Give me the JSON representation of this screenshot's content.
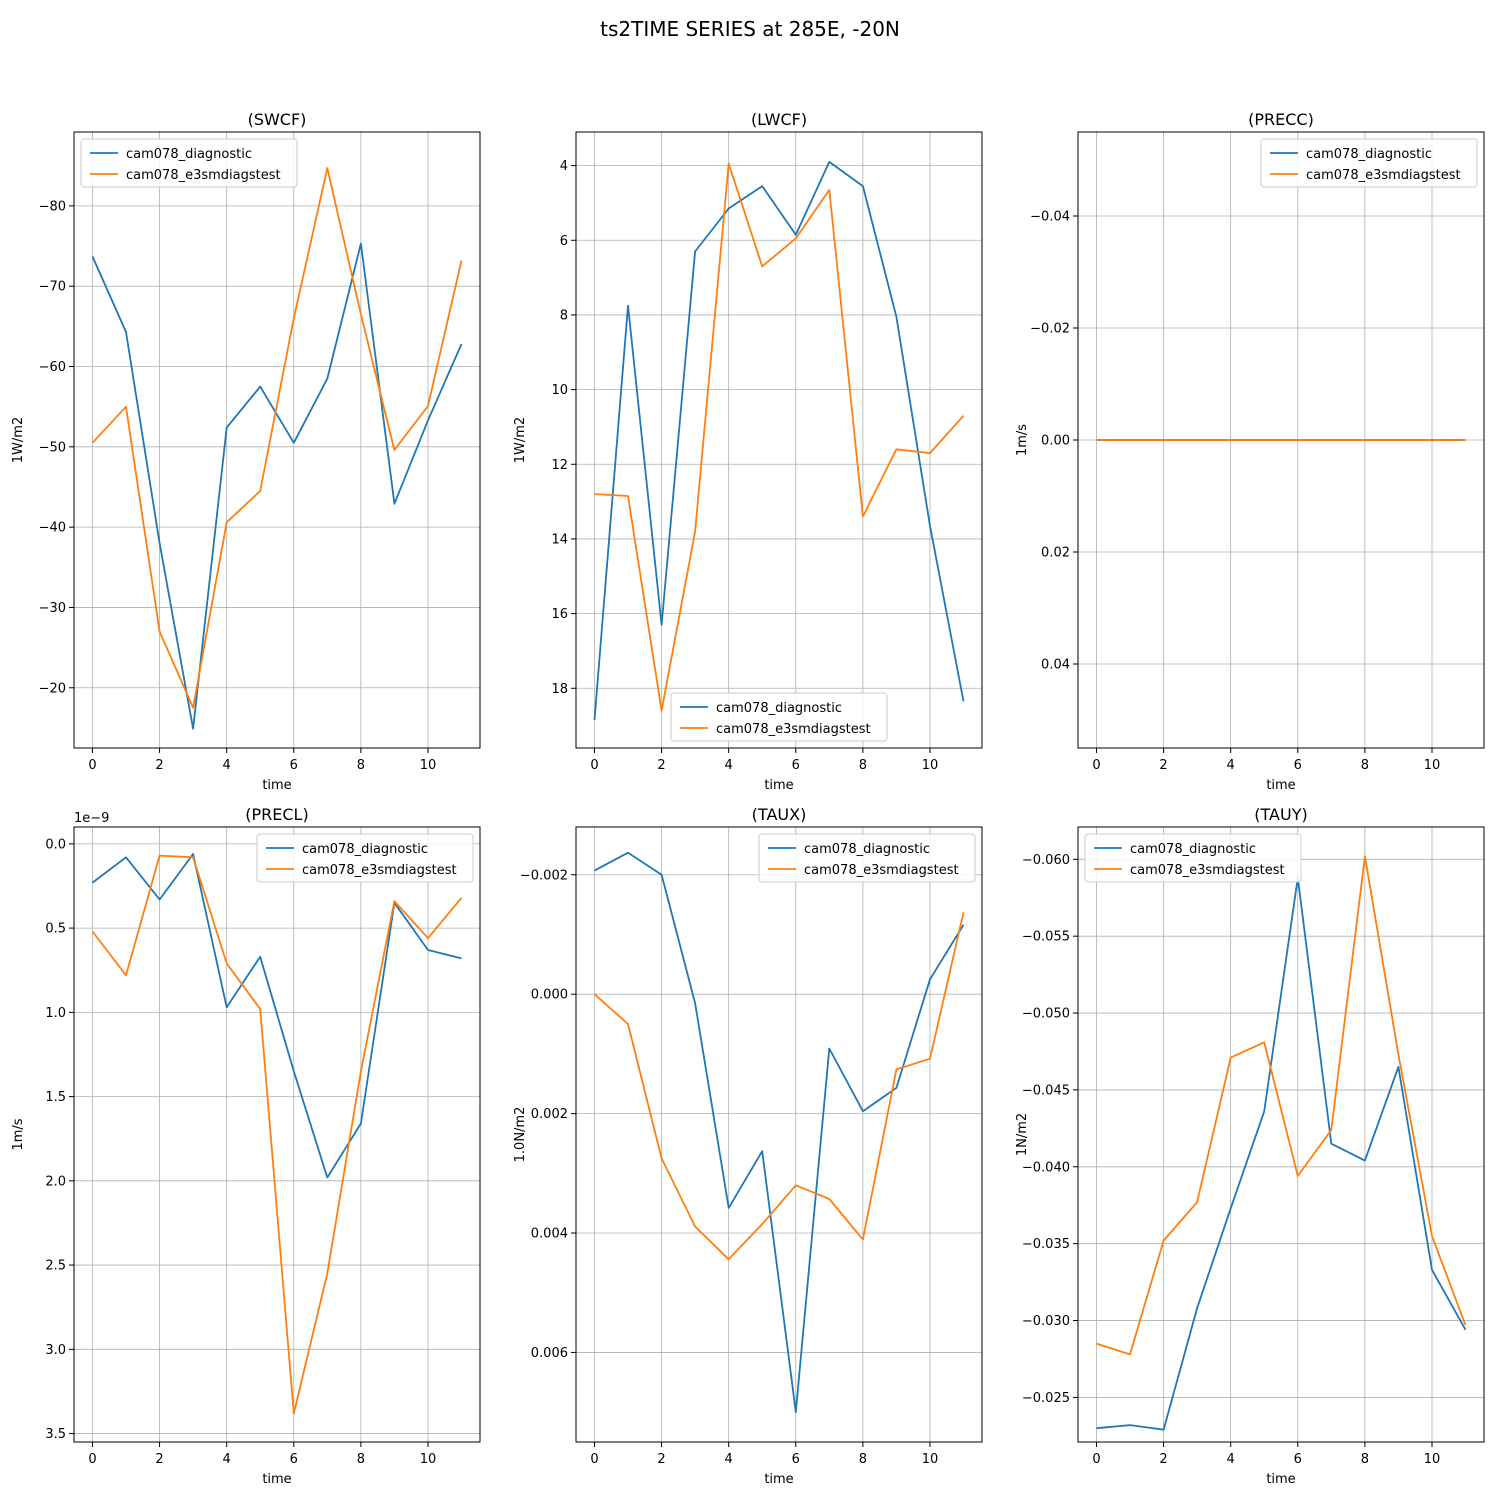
{
  "suptitle": "ts2TIME SERIES at 285E, -20N",
  "colors": {
    "cam078_diagnostic": "#1f77b4",
    "cam078_e3smdiagstest": "#ff7f0e"
  },
  "chart_data": [
    {
      "type": "line",
      "title": "(SWCF)",
      "xlabel": "time",
      "ylabel": "1W/m2",
      "y_inverted": true,
      "grid": true,
      "legend": "upper left",
      "xlim": [
        -0.55,
        11.55
      ],
      "ylim": [
        -12.5,
        -89.2
      ],
      "xticks": [
        0,
        2,
        4,
        6,
        8,
        10
      ],
      "xtick_labels": [
        "0",
        "2",
        "4",
        "6",
        "8",
        "10"
      ],
      "yticks": [
        -80,
        -70,
        -60,
        -50,
        -40,
        -30,
        -20
      ],
      "ytick_labels": [
        "−80",
        "−70",
        "−60",
        "−50",
        "−40",
        "−30",
        "−20"
      ],
      "x": [
        0,
        1,
        2,
        3,
        4,
        5,
        6,
        7,
        8,
        9,
        10,
        11
      ],
      "series": [
        {
          "name": "cam078_diagnostic",
          "values": [
            -73.7,
            -64.3,
            -38.0,
            -14.9,
            -52.4,
            -57.5,
            -50.5,
            -58.5,
            -75.3,
            -42.9,
            -53.3,
            -62.8
          ]
        },
        {
          "name": "cam078_e3smdiagstest",
          "values": [
            -50.5,
            -55.0,
            -27.0,
            -17.5,
            -40.6,
            -44.5,
            -66.0,
            -84.7,
            -66.5,
            -49.6,
            -55.1,
            -73.2
          ]
        }
      ]
    },
    {
      "type": "line",
      "title": "(LWCF)",
      "xlabel": "time",
      "ylabel": "1W/m2",
      "y_inverted": true,
      "grid": true,
      "legend": "lower center",
      "xlim": [
        -0.55,
        11.55
      ],
      "ylim": [
        19.6,
        3.1
      ],
      "xticks": [
        0,
        2,
        4,
        6,
        8,
        10
      ],
      "xtick_labels": [
        "0",
        "2",
        "4",
        "6",
        "8",
        "10"
      ],
      "yticks": [
        4,
        6,
        8,
        10,
        12,
        14,
        16,
        18
      ],
      "ytick_labels": [
        "4",
        "6",
        "8",
        "10",
        "12",
        "14",
        "16",
        "18"
      ],
      "x": [
        0,
        1,
        2,
        3,
        4,
        5,
        6,
        7,
        8,
        9,
        10,
        11
      ],
      "series": [
        {
          "name": "cam078_diagnostic",
          "values": [
            18.85,
            7.75,
            16.3,
            6.3,
            5.15,
            4.55,
            5.85,
            3.9,
            4.55,
            8.05,
            13.65,
            18.35
          ]
        },
        {
          "name": "cam078_e3smdiagstest",
          "values": [
            12.8,
            12.85,
            18.6,
            13.8,
            3.95,
            6.7,
            5.95,
            4.65,
            13.4,
            11.6,
            11.7,
            10.7
          ]
        }
      ]
    },
    {
      "type": "line",
      "title": "(PRECC)",
      "xlabel": "time",
      "ylabel": "1m/s",
      "y_inverted": true,
      "grid": true,
      "legend": "upper right",
      "xlim": [
        -0.55,
        11.55
      ],
      "ylim": [
        0.055,
        -0.055
      ],
      "xticks": [
        0,
        2,
        4,
        6,
        8,
        10
      ],
      "xtick_labels": [
        "0",
        "2",
        "4",
        "6",
        "8",
        "10"
      ],
      "yticks": [
        -0.04,
        -0.02,
        0.0,
        0.02,
        0.04
      ],
      "ytick_labels": [
        "−0.04",
        "−0.02",
        "0.00",
        "0.02",
        "0.04"
      ],
      "x": [
        0,
        1,
        2,
        3,
        4,
        5,
        6,
        7,
        8,
        9,
        10,
        11
      ],
      "series": [
        {
          "name": "cam078_diagnostic",
          "values": [
            0,
            0,
            0,
            0,
            0,
            0,
            0,
            0,
            0,
            0,
            0,
            0
          ]
        },
        {
          "name": "cam078_e3smdiagstest",
          "values": [
            0,
            0,
            0,
            0,
            0,
            0,
            0,
            0,
            0,
            0,
            0,
            0
          ]
        }
      ]
    },
    {
      "type": "line",
      "title": "(PRECL)",
      "xlabel": "time",
      "ylabel": "1m/s",
      "y_offset_label": "1e−9",
      "y_inverted": true,
      "grid": true,
      "legend": "upper right",
      "xlim": [
        -0.55,
        11.55
      ],
      "ylim": [
        3.55,
        -0.1
      ],
      "xticks": [
        0,
        2,
        4,
        6,
        8,
        10
      ],
      "xtick_labels": [
        "0",
        "2",
        "4",
        "6",
        "8",
        "10"
      ],
      "yticks": [
        0.0,
        0.5,
        1.0,
        1.5,
        2.0,
        2.5,
        3.0,
        3.5
      ],
      "ytick_labels": [
        "0.0",
        "0.5",
        "1.0",
        "1.5",
        "2.0",
        "2.5",
        "3.0",
        "3.5"
      ],
      "x": [
        0,
        1,
        2,
        3,
        4,
        5,
        6,
        7,
        8,
        9,
        10,
        11
      ],
      "series": [
        {
          "name": "cam078_diagnostic",
          "values": [
            0.23,
            0.08,
            0.33,
            0.06,
            0.97,
            0.67,
            1.35,
            1.98,
            1.66,
            0.35,
            0.63,
            0.68
          ]
        },
        {
          "name": "cam078_e3smdiagstest",
          "values": [
            0.52,
            0.78,
            0.07,
            0.08,
            0.71,
            0.98,
            3.38,
            2.55,
            1.35,
            0.34,
            0.56,
            0.32
          ]
        }
      ]
    },
    {
      "type": "line",
      "title": "(TAUX)",
      "xlabel": "time",
      "ylabel": "1.0N/m2",
      "y_inverted": true,
      "grid": true,
      "legend": "upper right",
      "xlim": [
        -0.55,
        11.55
      ],
      "ylim": [
        0.0075,
        -0.0028
      ],
      "xticks": [
        0,
        2,
        4,
        6,
        8,
        10
      ],
      "xtick_labels": [
        "0",
        "2",
        "4",
        "6",
        "8",
        "10"
      ],
      "yticks": [
        -0.002,
        0.0,
        0.002,
        0.004,
        0.006
      ],
      "ytick_labels": [
        "−0.002",
        "0.000",
        "0.002",
        "0.004",
        "0.006"
      ],
      "x": [
        0,
        1,
        2,
        3,
        4,
        5,
        6,
        7,
        8,
        9,
        10,
        11
      ],
      "series": [
        {
          "name": "cam078_diagnostic",
          "values": [
            -0.00207,
            -0.00237,
            -0.002,
            0.00015,
            0.00358,
            0.00263,
            0.007,
            0.00091,
            0.00196,
            0.00157,
            -0.00025,
            -0.00116
          ]
        },
        {
          "name": "cam078_e3smdiagstest",
          "values": [
            0.0,
            0.0005,
            0.00275,
            0.00389,
            0.00444,
            0.00385,
            0.0032,
            0.00343,
            0.00411,
            0.00126,
            0.00108,
            -0.00137
          ]
        }
      ]
    },
    {
      "type": "line",
      "title": "(TAUY)",
      "xlabel": "time",
      "ylabel": "1N/m2",
      "y_inverted": true,
      "grid": true,
      "legend": "upper left",
      "xlim": [
        -0.55,
        11.55
      ],
      "ylim": [
        -0.0221,
        -0.0621
      ],
      "xticks": [
        0,
        2,
        4,
        6,
        8,
        10
      ],
      "xtick_labels": [
        "0",
        "2",
        "4",
        "6",
        "8",
        "10"
      ],
      "yticks": [
        -0.06,
        -0.055,
        -0.05,
        -0.045,
        -0.04,
        -0.035,
        -0.03,
        -0.025
      ],
      "ytick_labels": [
        "−0.060",
        "−0.055",
        "−0.050",
        "−0.045",
        "−0.040",
        "−0.035",
        "−0.030",
        "−0.025"
      ],
      "x": [
        0,
        1,
        2,
        3,
        4,
        5,
        6,
        7,
        8,
        9,
        10,
        11
      ],
      "series": [
        {
          "name": "cam078_diagnostic",
          "values": [
            -0.023,
            -0.0232,
            -0.0229,
            -0.0308,
            -0.0373,
            -0.0436,
            -0.0588,
            -0.0415,
            -0.0404,
            -0.0465,
            -0.0333,
            -0.0294
          ]
        },
        {
          "name": "cam078_e3smdiagstest",
          "values": [
            -0.0285,
            -0.0278,
            -0.0352,
            -0.0377,
            -0.0471,
            -0.0481,
            -0.0394,
            -0.0424,
            -0.0602,
            -0.0473,
            -0.0355,
            -0.0297
          ]
        }
      ]
    }
  ]
}
